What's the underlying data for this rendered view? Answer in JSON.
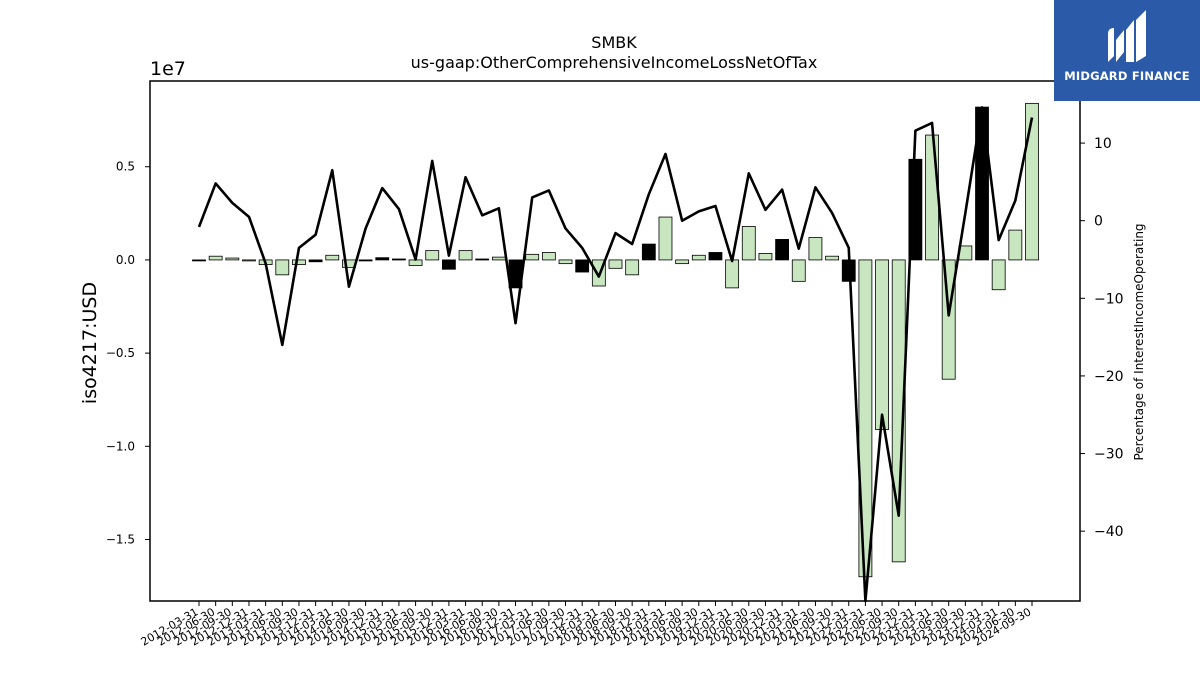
{
  "chart_data": {
    "type": "bar",
    "title": "SMBK",
    "subtitle": "us-gaap:OtherComprehensiveIncomeLossNetOfTax",
    "ylabel": "iso4217:USD",
    "y_offset_label": "1e7",
    "y2label": "Percentage of InterestIncomeOperating",
    "ylim": [
      -18300000,
      9600000
    ],
    "y2lim": [
      -49,
      18
    ],
    "yticks": [
      {
        "value": 5000000,
        "label": "0.5"
      },
      {
        "value": 0,
        "label": "0.0"
      },
      {
        "value": -5000000,
        "label": "−0.5"
      },
      {
        "value": -10000000,
        "label": "−1.0"
      },
      {
        "value": -15000000,
        "label": "−1.5"
      }
    ],
    "y2ticks": [
      {
        "value": 10,
        "label": "10"
      },
      {
        "value": 0,
        "label": "0"
      },
      {
        "value": -10,
        "label": "−10"
      },
      {
        "value": -20,
        "label": "−20"
      },
      {
        "value": -30,
        "label": "−30"
      },
      {
        "value": -40,
        "label": "−40"
      }
    ],
    "categories": [
      "2012-03-31",
      "2012-06-30",
      "2012-09-30",
      "2012-12-31",
      "2013-03-31",
      "2013-06-30",
      "2013-09-30",
      "2013-12-31",
      "2014-03-31",
      "2014-06-30",
      "2014-09-30",
      "2014-12-31",
      "2015-03-31",
      "2015-06-30",
      "2015-09-30",
      "2015-12-31",
      "2016-03-31",
      "2016-06-30",
      "2016-09-30",
      "2016-12-31",
      "2017-03-31",
      "2017-06-30",
      "2017-09-30",
      "2017-12-31",
      "2018-03-31",
      "2018-06-30",
      "2018-09-30",
      "2018-12-31",
      "2019-03-31",
      "2019-06-30",
      "2019-09-30",
      "2019-12-31",
      "2020-03-31",
      "2020-06-30",
      "2020-09-30",
      "2020-12-31",
      "2021-03-31",
      "2021-06-30",
      "2021-09-30",
      "2021-12-31",
      "2022-03-31",
      "2022-06-30",
      "2022-09-30",
      "2022-12-31",
      "2023-03-31",
      "2023-06-30",
      "2023-09-30",
      "2023-12-31",
      "2024-03-31",
      "2024-06-30",
      "2024-09-30"
    ],
    "series": [
      {
        "kind": "bar",
        "values": [
          -50000,
          200000,
          100000,
          -30000,
          -250000,
          -800000,
          -250000,
          -100000,
          250000,
          -400000,
          -50000,
          120000,
          50000,
          -300000,
          500000,
          -500000,
          500000,
          50000,
          150000,
          -1500000,
          300000,
          400000,
          -200000,
          -650000,
          -1400000,
          -450000,
          -800000,
          850000,
          2300000,
          -200000,
          250000,
          400000,
          -1500000,
          1800000,
          350000,
          1100000,
          -1150000,
          1200000,
          200000,
          -1150000,
          -17000000,
          -9100000,
          -16200000,
          5400000,
          6700000,
          -6400000,
          750000,
          8200000,
          -1600000,
          1600000,
          8400000
        ],
        "colors": [
          "#000000",
          "#c8e6c0",
          "#c8e6c0",
          "#c8e6c0",
          "#c8e6c0",
          "#c8e6c0",
          "#c8e6c0",
          "#000000",
          "#c8e6c0",
          "#c8e6c0",
          "#000000",
          "#000000",
          "#000000",
          "#c8e6c0",
          "#c8e6c0",
          "#000000",
          "#c8e6c0",
          "#000000",
          "#c8e6c0",
          "#000000",
          "#c8e6c0",
          "#c8e6c0",
          "#c8e6c0",
          "#000000",
          "#c8e6c0",
          "#c8e6c0",
          "#c8e6c0",
          "#000000",
          "#c8e6c0",
          "#c8e6c0",
          "#c8e6c0",
          "#000000",
          "#c8e6c0",
          "#c8e6c0",
          "#c8e6c0",
          "#000000",
          "#c8e6c0",
          "#c8e6c0",
          "#c8e6c0",
          "#000000",
          "#c8e6c0",
          "#c8e6c0",
          "#c8e6c0",
          "#000000",
          "#c8e6c0",
          "#c8e6c0",
          "#c8e6c0",
          "#000000",
          "#c8e6c0",
          "#c8e6c0",
          "#c8e6c0"
        ]
      },
      {
        "kind": "line",
        "axis": "right",
        "color": "#000000",
        "values": [
          -0.8,
          4.8,
          2.3,
          0.5,
          -5.5,
          -16.0,
          -3.5,
          -1.8,
          6.5,
          -8.5,
          -1.0,
          4.2,
          1.5,
          -5.0,
          7.7,
          -4.5,
          5.6,
          0.7,
          1.6,
          -13.2,
          3.0,
          3.9,
          -1.0,
          -3.5,
          -7.2,
          -1.6,
          -3.0,
          3.4,
          8.6,
          0.0,
          1.2,
          1.9,
          -5.2,
          6.1,
          1.4,
          4.0,
          -3.6,
          4.3,
          1.0,
          -3.5,
          -49.0,
          -25.0,
          -38.0,
          11.6,
          12.6,
          -12.2,
          1.0,
          14.6,
          -2.5,
          2.6,
          13.3
        ]
      }
    ],
    "grid": false,
    "legend": "none"
  },
  "logo": {
    "text": "MIDGARD FINANCE",
    "background": "#2a5aa8",
    "icon": "midgard-logo-icon"
  }
}
